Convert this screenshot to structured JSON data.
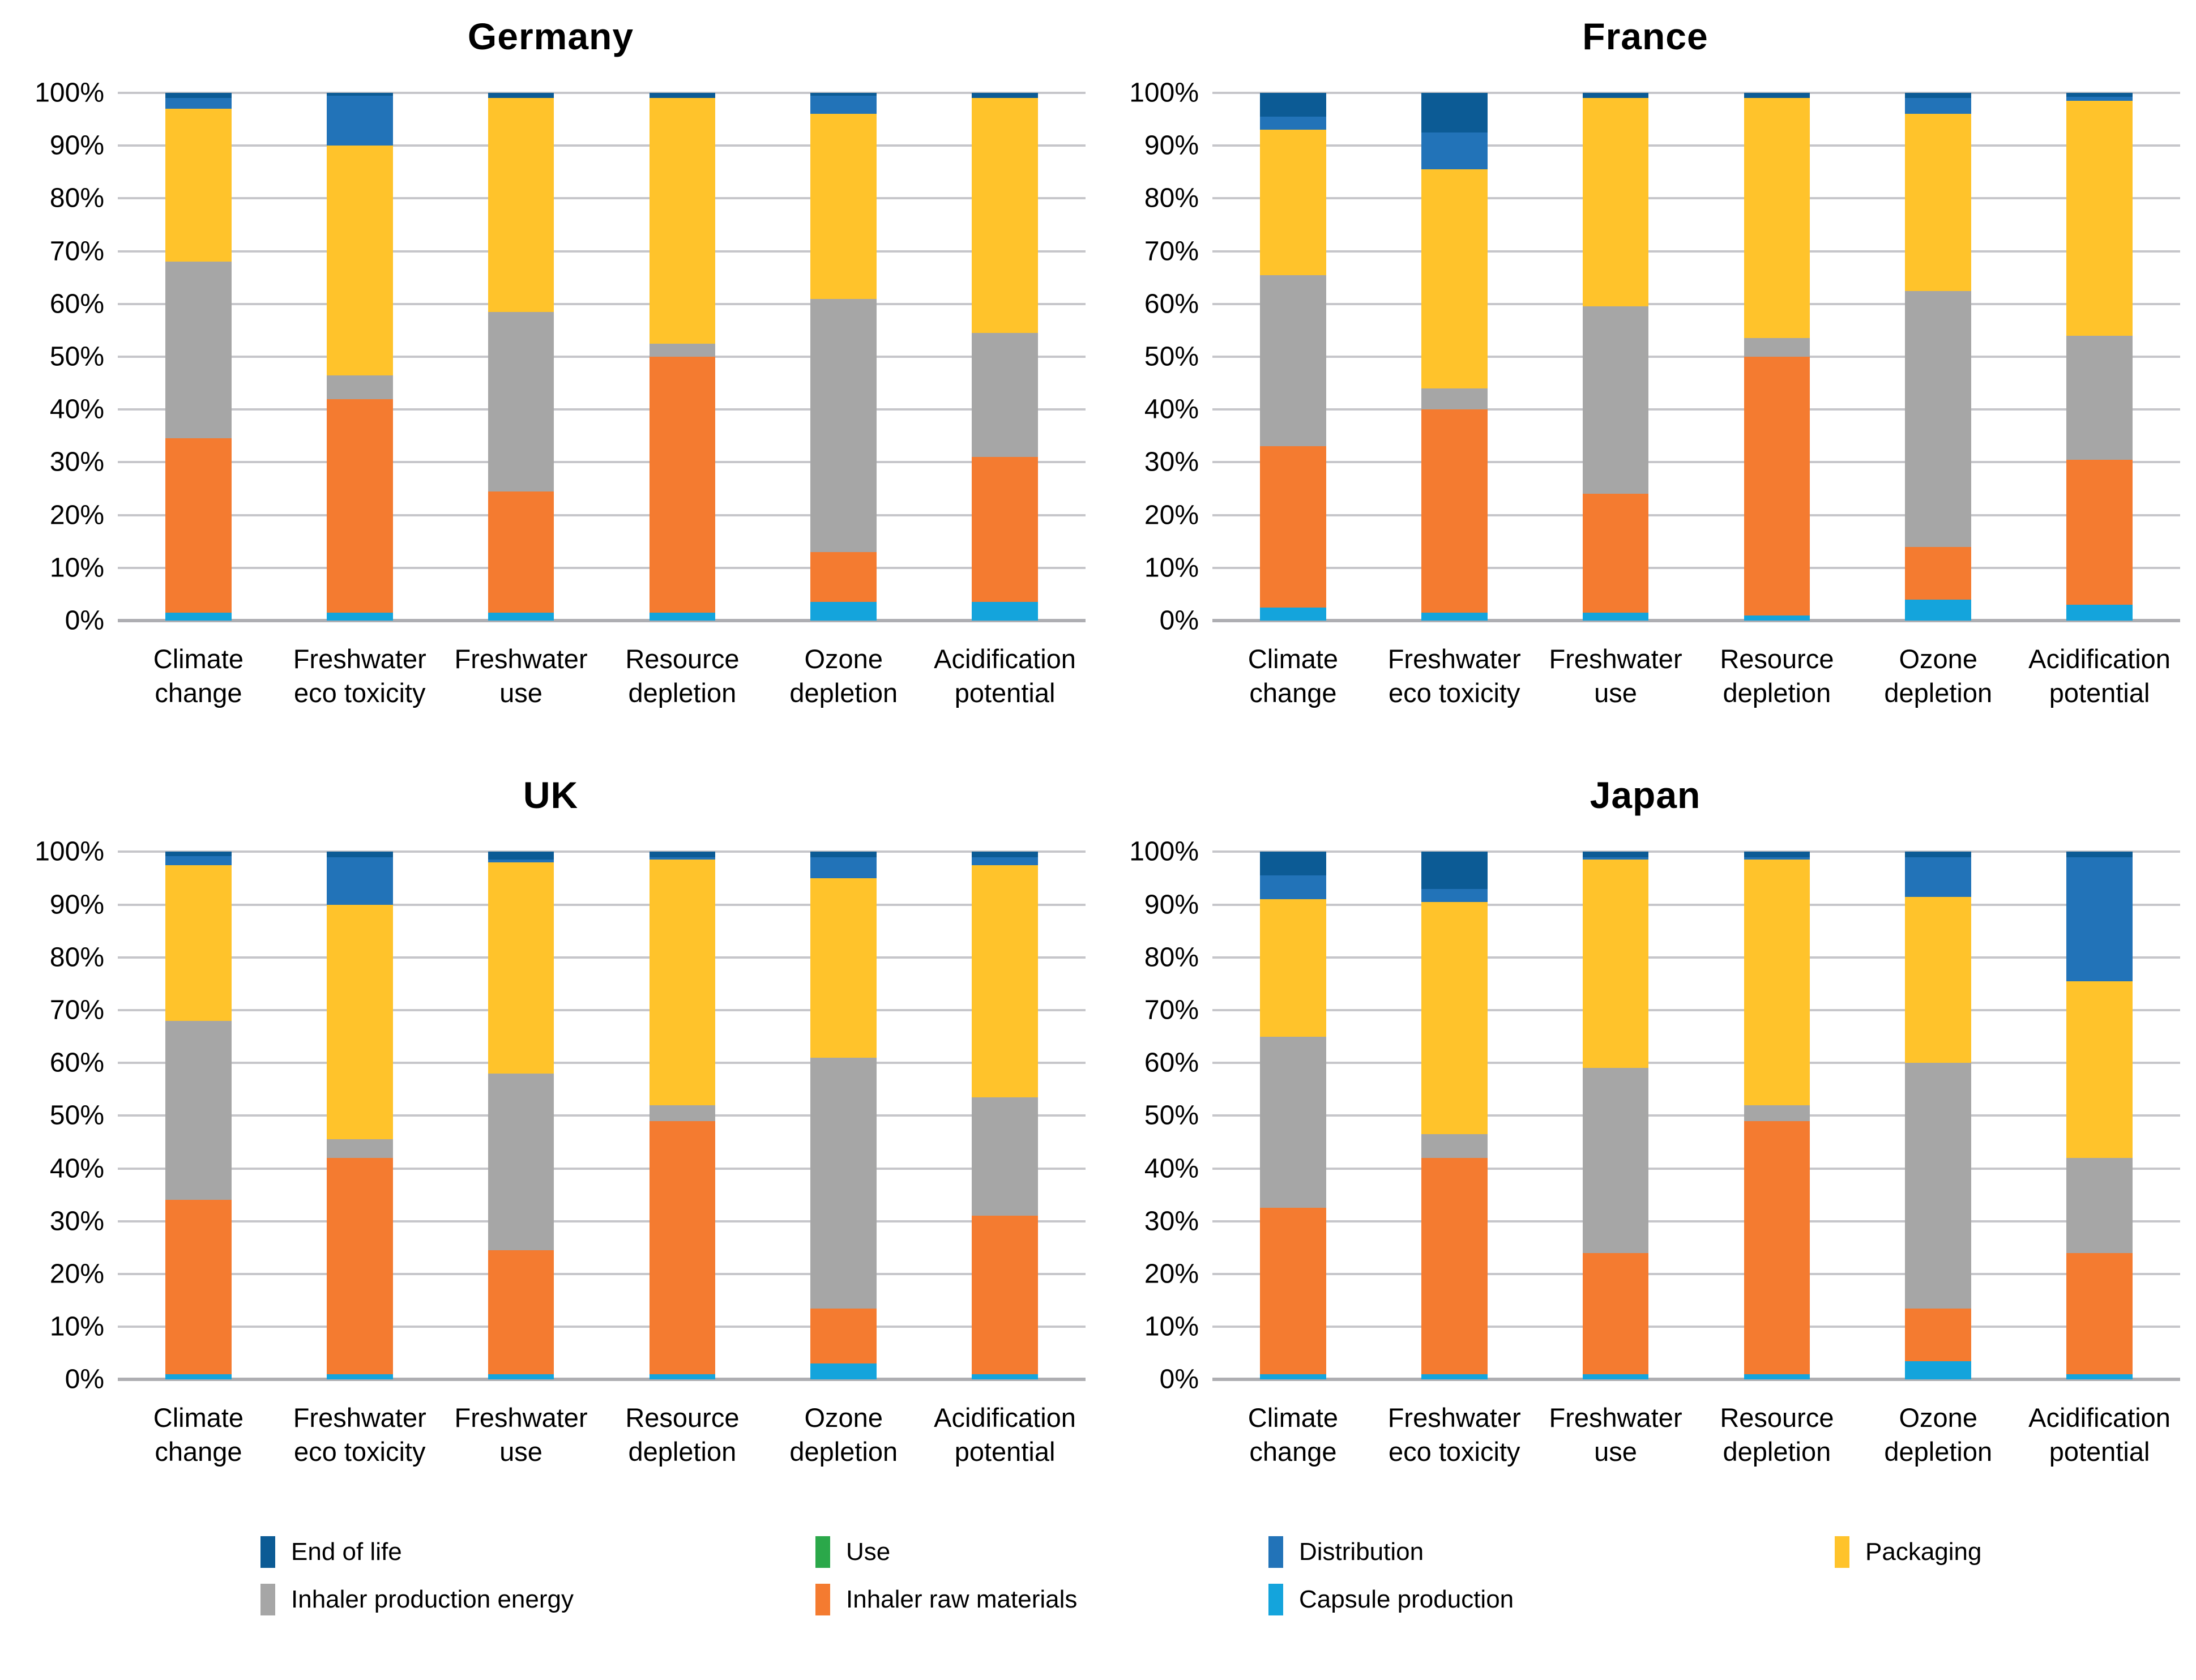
{
  "page": {
    "background": "#ffffff"
  },
  "colors": {
    "end_of_life": "#0c5b95",
    "use": "#2ba84a",
    "distribution": "#2273b8",
    "packaging": "#ffc32b",
    "inhaler_production_energy": "#a6a6a6",
    "inhaler_raw_materials": "#f47b30",
    "capsule_production": "#14a4dc",
    "gridline": "#c6c6ca",
    "baseline": "#aeaeb2",
    "text": "#000000"
  },
  "y_axis": {
    "ticks": [
      "100%",
      "90%",
      "80%",
      "70%",
      "60%",
      "50%",
      "40%",
      "30%",
      "20%",
      "10%",
      "0%"
    ]
  },
  "category_lines": [
    [
      "Climate",
      "change"
    ],
    [
      "Freshwater",
      "eco toxicity"
    ],
    [
      "Freshwater",
      "use"
    ],
    [
      "Resource",
      "depletion"
    ],
    [
      "Ozone",
      "depletion"
    ],
    [
      "Acidification",
      "potential"
    ]
  ],
  "legend": {
    "rows": [
      [
        {
          "label": "End of life",
          "color_key": "end_of_life"
        },
        {
          "label": "Use",
          "color_key": "use"
        },
        {
          "label": "Distribution",
          "color_key": "distribution"
        },
        {
          "label": "Packaging",
          "color_key": "packaging"
        }
      ],
      [
        {
          "label": "Inhaler production energy",
          "color_key": "inhaler_production_energy"
        },
        {
          "label": "Inhaler raw materials",
          "color_key": "inhaler_raw_materials"
        },
        {
          "label": "Capsule production",
          "color_key": "capsule_production"
        }
      ]
    ]
  },
  "chart_data": [
    {
      "type": "bar",
      "stacked": true,
      "units": "percent",
      "title": "Germany",
      "ylim": [
        0,
        100
      ],
      "grid": true,
      "categories": [
        "Climate change",
        "Freshwater eco toxicity",
        "Freshwater use",
        "Resource depletion",
        "Ozone depletion",
        "Acidification potential"
      ],
      "series": [
        {
          "name": "Capsule production",
          "color_key": "capsule_production",
          "values": [
            1.5,
            1.5,
            1.5,
            1.5,
            3.5,
            3.5
          ]
        },
        {
          "name": "Inhaler raw materials",
          "color_key": "inhaler_raw_materials",
          "values": [
            33,
            40.5,
            23,
            48.5,
            9.5,
            27.5
          ]
        },
        {
          "name": "Inhaler production energy",
          "color_key": "inhaler_production_energy",
          "values": [
            33.5,
            4.5,
            34,
            2.5,
            48,
            23.5
          ]
        },
        {
          "name": "Packaging",
          "color_key": "packaging",
          "values": [
            29,
            43.5,
            40.5,
            46.5,
            35,
            44.5
          ]
        },
        {
          "name": "Use",
          "color_key": "use",
          "values": [
            0,
            0,
            0,
            0,
            0,
            0
          ]
        },
        {
          "name": "Distribution",
          "color_key": "distribution",
          "values": [
            2,
            9.5,
            0,
            0,
            3.5,
            0
          ]
        },
        {
          "name": "End of life",
          "color_key": "end_of_life",
          "values": [
            1,
            0.5,
            1,
            1,
            0.5,
            1
          ]
        }
      ]
    },
    {
      "type": "bar",
      "stacked": true,
      "units": "percent",
      "title": "France",
      "ylim": [
        0,
        100
      ],
      "grid": true,
      "categories": [
        "Climate change",
        "Freshwater eco toxicity",
        "Freshwater use",
        "Resource depletion",
        "Ozone depletion",
        "Acidification potential"
      ],
      "series": [
        {
          "name": "Capsule production",
          "color_key": "capsule_production",
          "values": [
            2.5,
            1.5,
            1.5,
            1,
            4,
            3
          ]
        },
        {
          "name": "Inhaler raw materials",
          "color_key": "inhaler_raw_materials",
          "values": [
            30.5,
            38.5,
            22.5,
            49,
            10,
            27.5
          ]
        },
        {
          "name": "Inhaler production energy",
          "color_key": "inhaler_production_energy",
          "values": [
            32.5,
            4,
            35.5,
            3.5,
            48.5,
            23.5
          ]
        },
        {
          "name": "Packaging",
          "color_key": "packaging",
          "values": [
            27.5,
            41.5,
            39.5,
            45.5,
            33.5,
            44.5
          ]
        },
        {
          "name": "Use",
          "color_key": "use",
          "values": [
            0,
            0,
            0,
            0,
            0,
            0
          ]
        },
        {
          "name": "Distribution",
          "color_key": "distribution",
          "values": [
            2.5,
            7,
            0,
            0,
            3,
            0.7
          ]
        },
        {
          "name": "End of life",
          "color_key": "end_of_life",
          "values": [
            4.5,
            7.5,
            1,
            1,
            1,
            0.8
          ]
        }
      ]
    },
    {
      "type": "bar",
      "stacked": true,
      "units": "percent",
      "title": "UK",
      "ylim": [
        0,
        100
      ],
      "grid": true,
      "categories": [
        "Climate change",
        "Freshwater eco toxicity",
        "Freshwater use",
        "Resource depletion",
        "Ozone depletion",
        "Acidification potential"
      ],
      "series": [
        {
          "name": "Capsule production",
          "color_key": "capsule_production",
          "values": [
            1,
            1,
            1,
            1,
            3,
            1
          ]
        },
        {
          "name": "Inhaler raw materials",
          "color_key": "inhaler_raw_materials",
          "values": [
            33,
            41,
            23.5,
            48,
            10.5,
            30
          ]
        },
        {
          "name": "Inhaler production energy",
          "color_key": "inhaler_production_energy",
          "values": [
            34,
            3.5,
            33.5,
            3,
            47.5,
            22.5
          ]
        },
        {
          "name": "Packaging",
          "color_key": "packaging",
          "values": [
            29.5,
            44.5,
            40,
            46.5,
            34,
            44
          ]
        },
        {
          "name": "Use",
          "color_key": "use",
          "values": [
            0,
            0,
            0,
            0,
            0,
            0
          ]
        },
        {
          "name": "Distribution",
          "color_key": "distribution",
          "values": [
            1.7,
            9,
            0.5,
            0.5,
            4,
            1.5
          ]
        },
        {
          "name": "End of life",
          "color_key": "end_of_life",
          "values": [
            0.8,
            1,
            1.5,
            1,
            1,
            1
          ]
        }
      ]
    },
    {
      "type": "bar",
      "stacked": true,
      "units": "percent",
      "title": "Japan",
      "ylim": [
        0,
        100
      ],
      "grid": true,
      "categories": [
        "Climate change",
        "Freshwater eco toxicity",
        "Freshwater use",
        "Resource depletion",
        "Ozone depletion",
        "Acidification potential"
      ],
      "series": [
        {
          "name": "Capsule production",
          "color_key": "capsule_production",
          "values": [
            1,
            1,
            1,
            1,
            3.5,
            1
          ]
        },
        {
          "name": "Inhaler raw materials",
          "color_key": "inhaler_raw_materials",
          "values": [
            31.5,
            41,
            23,
            48,
            10,
            23
          ]
        },
        {
          "name": "Inhaler production energy",
          "color_key": "inhaler_production_energy",
          "values": [
            32.5,
            4.5,
            35,
            3,
            46.5,
            18
          ]
        },
        {
          "name": "Packaging",
          "color_key": "packaging",
          "values": [
            26,
            44,
            39.5,
            46.5,
            31.5,
            33.5
          ]
        },
        {
          "name": "Use",
          "color_key": "use",
          "values": [
            0,
            0,
            0,
            0,
            0,
            0
          ]
        },
        {
          "name": "Distribution",
          "color_key": "distribution",
          "values": [
            4.5,
            2.5,
            0.5,
            0.5,
            7.5,
            23.5
          ]
        },
        {
          "name": "End of life",
          "color_key": "end_of_life",
          "values": [
            4.5,
            7,
            1,
            1,
            1,
            1
          ]
        }
      ]
    }
  ]
}
